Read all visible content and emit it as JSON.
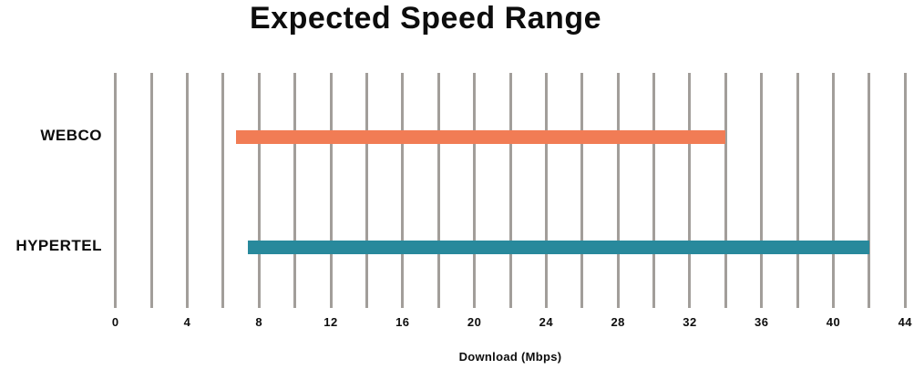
{
  "title": "Expected Speed Range",
  "chart_data": {
    "type": "bar",
    "subtype": "range",
    "orientation": "horizontal",
    "title": "Expected Speed Range",
    "xlabel": "Download (Mbps)",
    "ylabel": "",
    "xlim": [
      0,
      44
    ],
    "xticks": [
      0,
      4,
      8,
      12,
      16,
      20,
      24,
      28,
      32,
      36,
      40,
      44
    ],
    "grid_step": 2,
    "grid": "vertical-only",
    "legend": "none",
    "categories": [
      "WEBCO",
      "HYPERTEL"
    ],
    "series": [
      {
        "name": "WEBCO",
        "min_mbps": 6.7,
        "max_mbps": 34,
        "color": "#f17c55"
      },
      {
        "name": "HYPERTEL",
        "min_mbps": 7.4,
        "max_mbps": 42,
        "color": "#28899c"
      }
    ],
    "gridline_color": "#a29e9a",
    "text_color": "#0d0d0d"
  }
}
